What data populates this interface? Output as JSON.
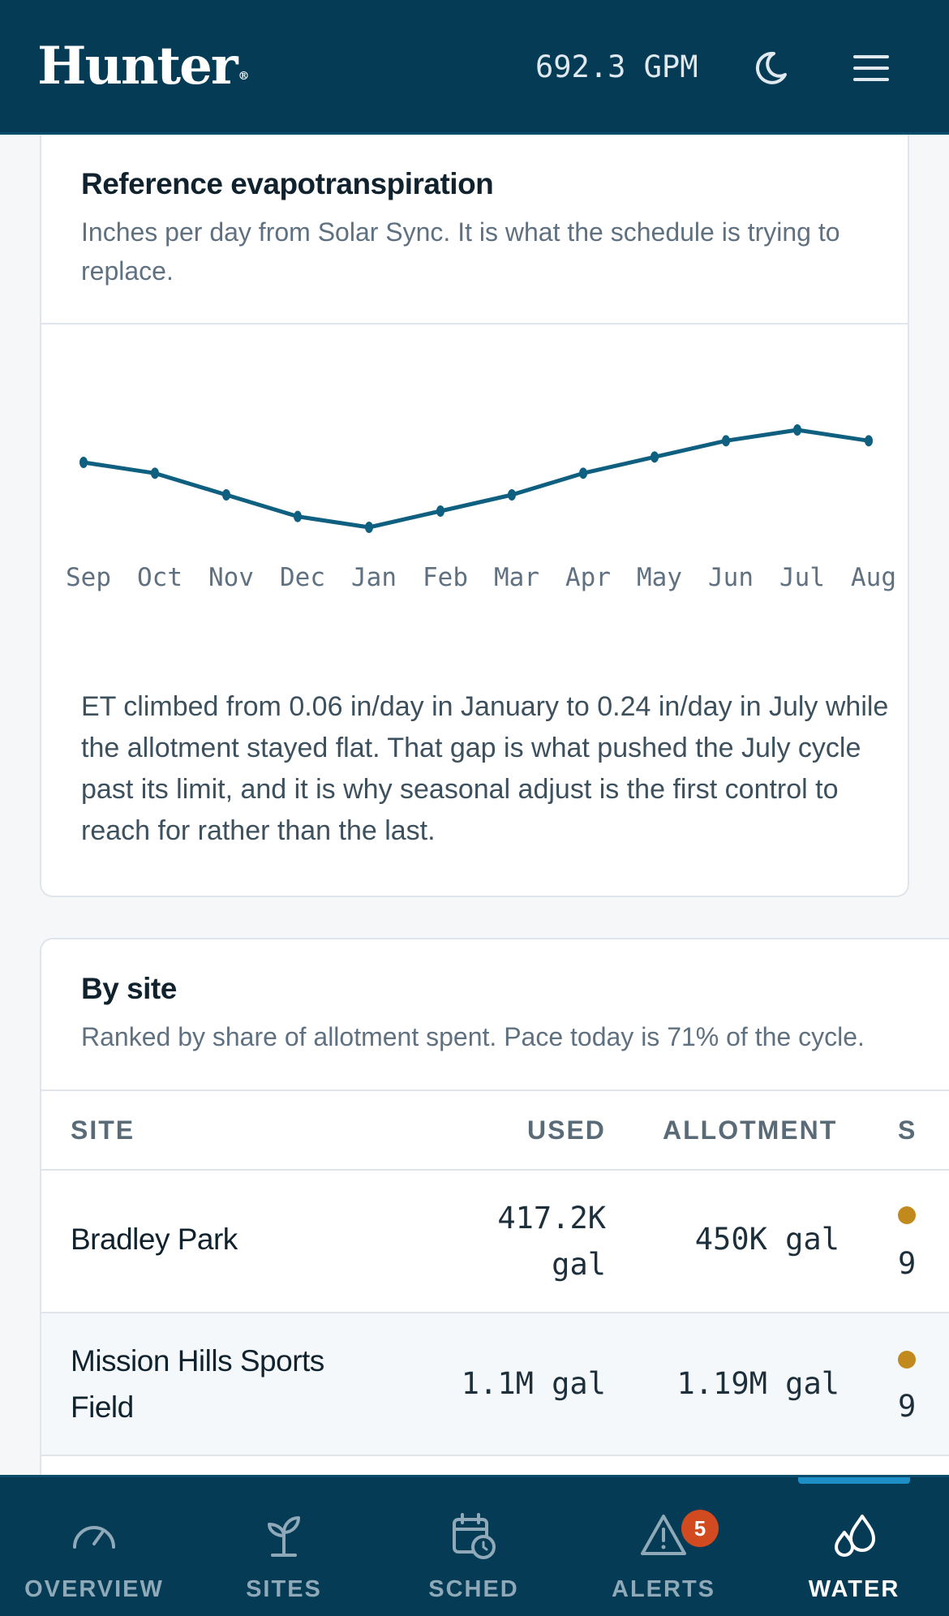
{
  "header": {
    "brand": "Hunter",
    "brand_mark": "®",
    "flow_readout": "692.3 GPM",
    "theme_icon": "moon-icon",
    "menu_icon": "menu-icon"
  },
  "et_card": {
    "title": "Reference evapotranspiration",
    "subtitle": "Inches per day from Solar Sync. It is what the schedule is trying to replace.",
    "note": "ET climbed from 0.06 in/day in January to 0.24 in/day in July while the allotment stayed flat. That gap is what pushed the July cycle past its limit, and it is why seasonal adjust is the first control to reach for rather than the last."
  },
  "chart_data": {
    "type": "line",
    "title": "Reference evapotranspiration",
    "ylabel": "",
    "xlabel": "",
    "categories": [
      "Sep",
      "Oct",
      "Nov",
      "Dec",
      "Jan",
      "Feb",
      "Mar",
      "Apr",
      "May",
      "Jun",
      "Jul",
      "Aug"
    ],
    "series": [
      {
        "values": [
          0.18,
          0.16,
          0.12,
          0.08,
          0.06,
          0.09,
          0.12,
          0.16,
          0.19,
          0.22,
          0.24,
          0.22
        ]
      }
    ],
    "ylim": [
      0.0,
      0.3
    ],
    "grid": false,
    "color": "#0f5f80"
  },
  "site_card": {
    "title": "By site",
    "subtitle": "Ranked by share of allotment spent. Pace today is 71% of the cycle.",
    "columns": {
      "site": "SITE",
      "used": "USED",
      "allotment": "ALLOTMENT",
      "status": "S"
    },
    "rows": [
      {
        "site": "Bradley Park",
        "used_line1": "417.2K",
        "used_line2": "gal",
        "allotment": "450K gal",
        "share": "9",
        "status_color": "#c28a1d"
      },
      {
        "site": "Mission Hills Sports Field",
        "used_line1": "1.1M gal",
        "used_line2": "",
        "allotment": "1.19M gal",
        "share": "9",
        "status_color": "#c28a1d"
      }
    ]
  },
  "nav": {
    "tabs": [
      {
        "label": "OVERVIEW",
        "icon": "gauge-icon"
      },
      {
        "label": "SITES",
        "icon": "sprout-icon"
      },
      {
        "label": "SCHED",
        "icon": "calendar-clock-icon"
      },
      {
        "label": "ALERTS",
        "icon": "alert-triangle-icon",
        "badge": "5"
      },
      {
        "label": "WATER",
        "icon": "droplets-icon",
        "active": true
      }
    ]
  }
}
